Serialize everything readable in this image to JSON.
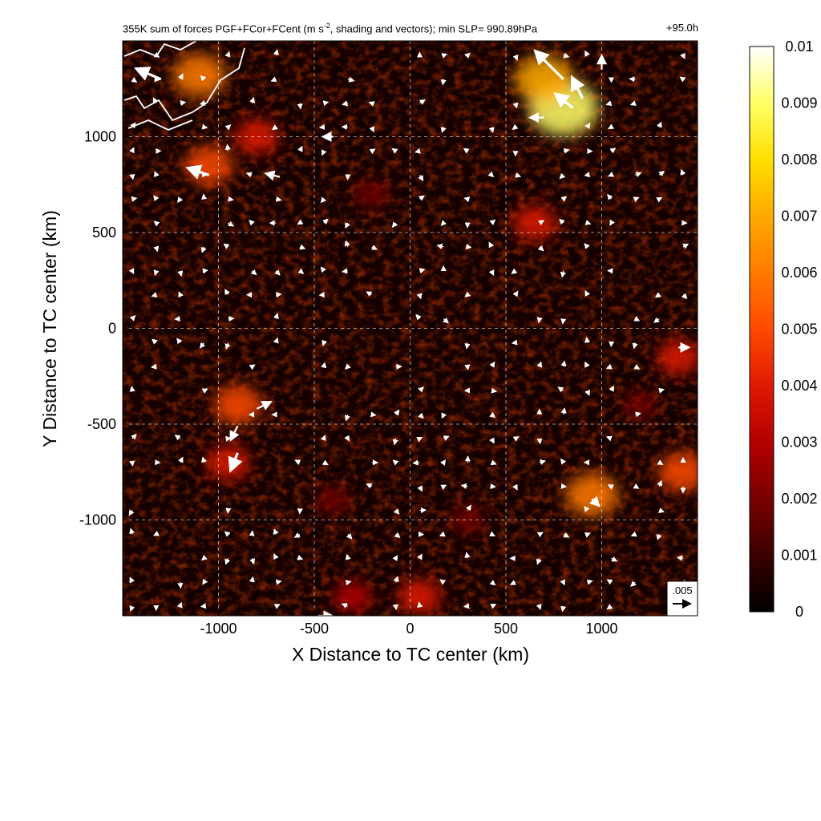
{
  "title": {
    "main": "355K sum of forces PGF+FCor+FCent (m s-2, shading and vectors); min SLP= 990.89hPa",
    "main_prefix": "355K sum of forces PGF+FCor+FCent (m s",
    "main_sup": "-2",
    "main_suffix": ", shading and vectors); min SLP= 990.89hPa",
    "time": "+95.0h"
  },
  "chart_data": {
    "type": "heatmap",
    "xlabel": "X Distance to TC center (km)",
    "ylabel": "Y Distance to TC center (km)",
    "xlim": [
      -1500,
      1500
    ],
    "ylim": [
      -1500,
      1500
    ],
    "x_ticks": [
      -1000,
      -500,
      0,
      500,
      1000
    ],
    "y_ticks": [
      -1000,
      -500,
      0,
      500,
      1000
    ],
    "x_tick_labels": [
      "-1000",
      "-500",
      "0",
      "500",
      "1000"
    ],
    "y_tick_labels": [
      "-1000",
      "-500",
      "0",
      "500",
      "1000"
    ],
    "grid": true,
    "grid_style": "dashed",
    "colormap": "black-red-orange-yellow-white",
    "colorbar": {
      "min": 0,
      "max": 0.01,
      "ticks": [
        0,
        0.001,
        0.002,
        0.003,
        0.004,
        0.005,
        0.006,
        0.007,
        0.008,
        0.009,
        0.01
      ],
      "tick_labels": [
        "0",
        "0.001",
        "0.002",
        "0.003",
        "0.004",
        "0.005",
        "0.006",
        "0.007",
        "0.008",
        "0.009",
        "0.01"
      ],
      "colors": [
        "#000000",
        "#3a0000",
        "#7a0000",
        "#b40000",
        "#e01a00",
        "#ff4a00",
        "#ff7a00",
        "#ffaa00",
        "#ffdf00",
        "#ffff66",
        "#ffffff"
      ]
    },
    "reference_vector": {
      "label": ".005",
      "magnitude": 0.005
    },
    "hotspots": [
      {
        "x": 800,
        "y": 1150,
        "value": 0.009
      },
      {
        "x": 700,
        "y": 1300,
        "value": 0.007
      },
      {
        "x": -1100,
        "y": 1320,
        "value": 0.006
      },
      {
        "x": -1050,
        "y": 850,
        "value": 0.005
      },
      {
        "x": -800,
        "y": 1000,
        "value": 0.004
      },
      {
        "x": -900,
        "y": -400,
        "value": 0.005
      },
      {
        "x": -950,
        "y": -700,
        "value": 0.004
      },
      {
        "x": 950,
        "y": -870,
        "value": 0.006
      },
      {
        "x": 1420,
        "y": -750,
        "value": 0.005
      },
      {
        "x": 1400,
        "y": -150,
        "value": 0.004
      },
      {
        "x": 50,
        "y": -1400,
        "value": 0.004
      },
      {
        "x": -300,
        "y": -1400,
        "value": 0.003
      },
      {
        "x": 650,
        "y": 550,
        "value": 0.004
      },
      {
        "x": -200,
        "y": 700,
        "value": 0.002
      },
      {
        "x": -400,
        "y": -900,
        "value": 0.002
      },
      {
        "x": 300,
        "y": -1000,
        "value": 0.002
      },
      {
        "x": 1200,
        "y": -400,
        "value": 0.002
      }
    ],
    "large_vectors": [
      {
        "x": -1300,
        "y": 1300,
        "u": -0.007,
        "v": 0.003
      },
      {
        "x": -1050,
        "y": 800,
        "u": -0.006,
        "v": 0.002
      },
      {
        "x": -680,
        "y": 790,
        "u": -0.004,
        "v": 0.001
      },
      {
        "x": -400,
        "y": 1000,
        "u": -0.003,
        "v": 0.0
      },
      {
        "x": 800,
        "y": 1300,
        "u": -0.008,
        "v": 0.008
      },
      {
        "x": 850,
        "y": 1150,
        "u": -0.005,
        "v": 0.004
      },
      {
        "x": 900,
        "y": 1200,
        "u": -0.003,
        "v": 0.006
      },
      {
        "x": 700,
        "y": 1100,
        "u": -0.004,
        "v": 0.0
      },
      {
        "x": 1000,
        "y": 1350,
        "u": 0.0,
        "v": 0.004
      },
      {
        "x": -800,
        "y": -420,
        "u": 0.004,
        "v": 0.002
      },
      {
        "x": -900,
        "y": -510,
        "u": -0.002,
        "v": -0.004
      },
      {
        "x": -900,
        "y": -650,
        "u": -0.002,
        "v": -0.005
      },
      {
        "x": 1400,
        "y": -100,
        "u": 0.003,
        "v": 0.0
      },
      {
        "x": 950,
        "y": -890,
        "u": 0.002,
        "v": -0.002
      },
      {
        "x": -480,
        "y": -1500,
        "u": 0.004,
        "v": 0.0
      }
    ],
    "coastline": "top-left corner (white outline)"
  }
}
